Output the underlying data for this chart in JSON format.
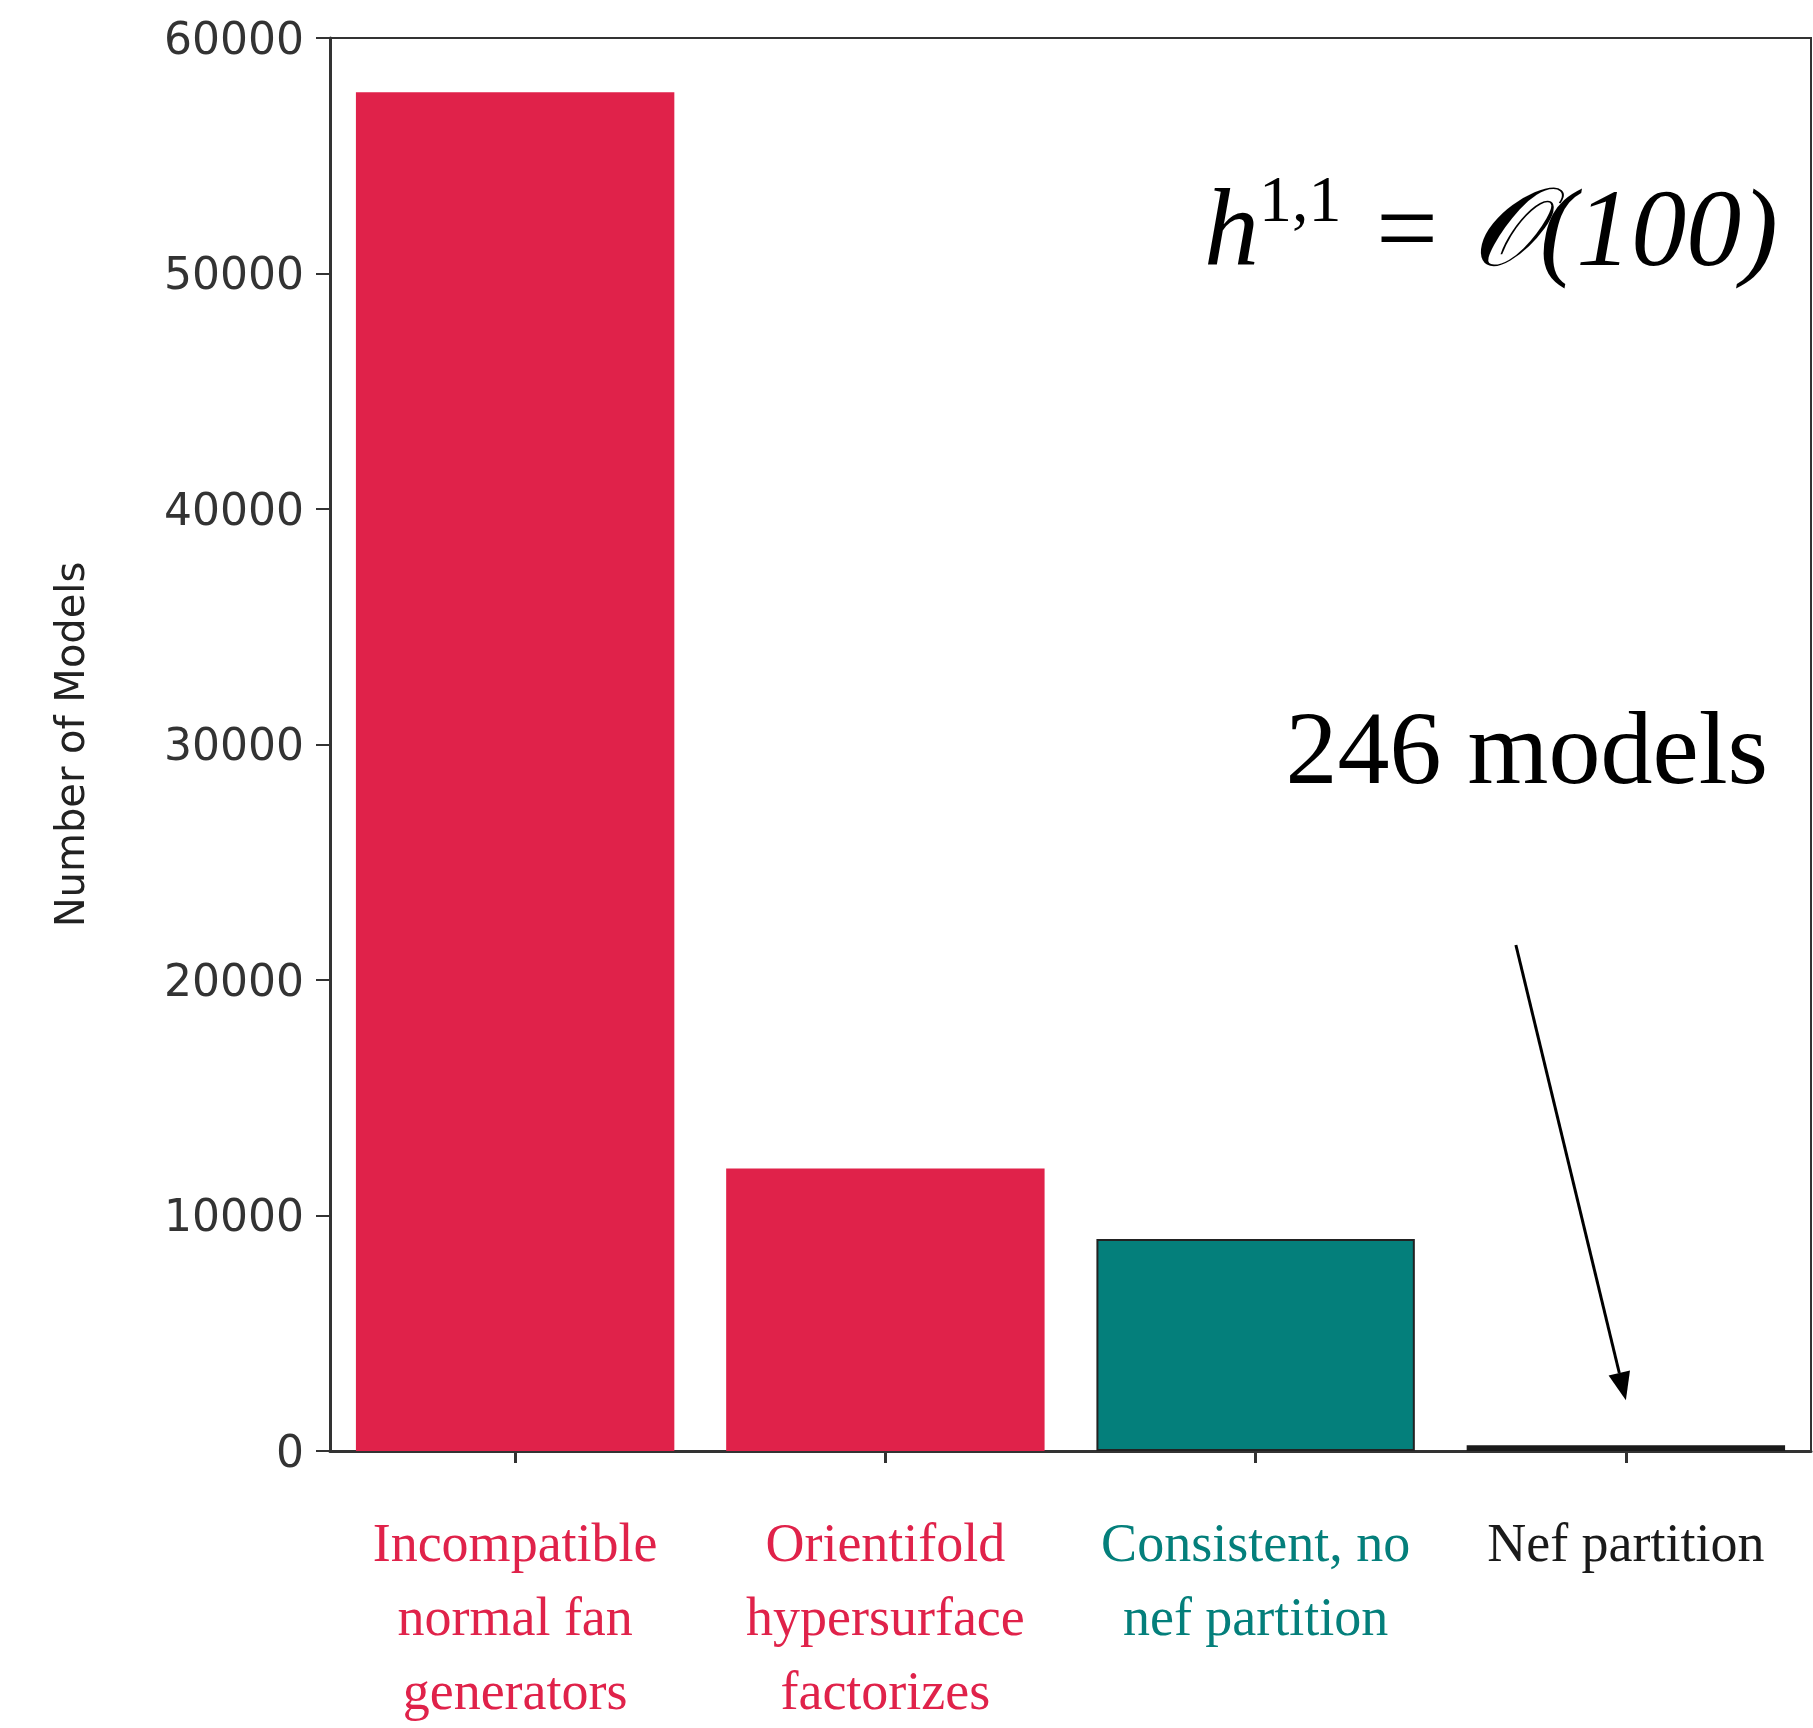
{
  "chart_data": {
    "type": "bar",
    "ylabel": "Number of Models",
    "categories": [
      "Incompatible normal fan generators",
      "Orientifold hypersurface factorizes",
      "Consistent, no nef partition",
      "Nef partition"
    ],
    "values": [
      57700,
      12000,
      9000,
      246
    ],
    "colors": [
      "#e0224a",
      "#e0224a",
      "#047f7b",
      "#1a1a1a"
    ],
    "ylim": [
      0,
      60000
    ],
    "yticks": [
      0,
      10000,
      20000,
      30000,
      40000,
      50000,
      60000
    ],
    "grid": false,
    "annotations": [
      "h$^{1,1}$ = 𝒪(100)",
      "246 models"
    ]
  }
}
